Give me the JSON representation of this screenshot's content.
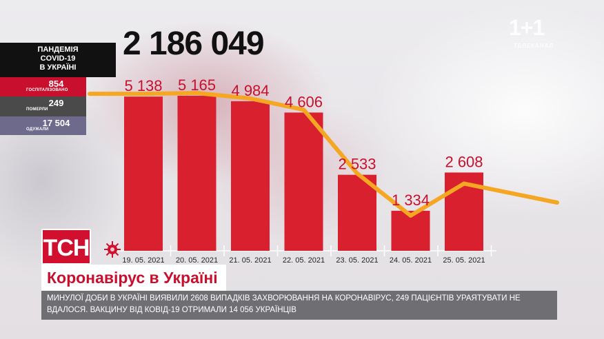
{
  "header": {
    "total_cases": "2 186 049",
    "pandemic_title": [
      "ПАНДЕМІЯ",
      "COVID-19",
      "В УКРАЇНІ"
    ],
    "hospitalized": {
      "value": "854",
      "label": "ГОСПІТАЛІЗОВАНО"
    },
    "deaths": {
      "value": "249",
      "label": "ПОМЕРЛИ"
    },
    "recovered": {
      "value": "17 504",
      "label": "ОДУЖАЛИ"
    }
  },
  "logo": {
    "text": "1+1",
    "subtitle": "ТЕЛЕКАНАЛ"
  },
  "branding": {
    "tsn": "ТСН",
    "headline": "Коронавірус в Україні"
  },
  "ticker": {
    "text": "МИНУЛОЇ ДОБИ В УКРАЇНІ ВИЯВИЛИ 2608 ВИПАДКІВ ЗАХВОРЮВАННЯ НА КОРОНАВІРУС, 249 ПАЦІЄНТІВ УРАЯТУВАТИ НЕ ВДАЛОСЯ. ВАКЦИНУ ВІД КОВІД-19 ОТРИМАЛИ 14 056 УКРАЇНЦІВ"
  },
  "colors": {
    "bar": "#d8202e",
    "line": "#f5a623",
    "label": "#c8102e",
    "accent": "#c8102e"
  },
  "chart_data": {
    "type": "bar",
    "title": "",
    "xlabel": "",
    "ylabel": "",
    "categories": [
      "19. 05. 2021",
      "20. 05. 2021",
      "21. 05. 2021",
      "22. 05. 2021",
      "23. 05. 2021",
      "24. 05. 2021",
      "25. 05. 2021"
    ],
    "values": [
      5138,
      5165,
      4984,
      4606,
      2533,
      1334,
      2608
    ],
    "value_labels": [
      "5 138",
      "5 165",
      "4 984",
      "4 606",
      "2 533",
      "1 334",
      "2 608"
    ],
    "trend_line": true,
    "grid": false,
    "legend": "none",
    "ylim": [
      0,
      5400
    ]
  }
}
